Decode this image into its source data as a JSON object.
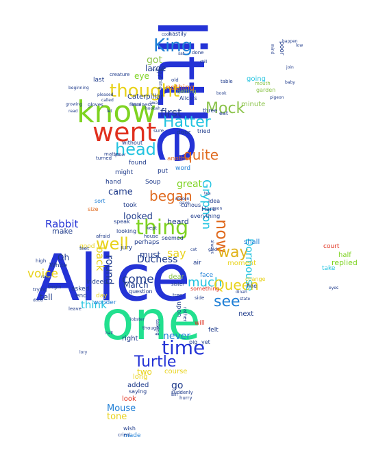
{
  "cloud": {
    "words": [
      {
        "text": "Alice",
        "color": "#2433d6"
      },
      {
        "text": "one",
        "color": "#22e08f"
      },
      {
        "text": "little",
        "color": "#2433d6"
      },
      {
        "text": "know",
        "color": "#7ed321"
      },
      {
        "text": "went",
        "color": "#e0301e"
      },
      {
        "text": "thought",
        "color": "#e8d21a"
      },
      {
        "text": "King",
        "color": "#1f7fd6"
      },
      {
        "text": "head",
        "color": "#22c3e0"
      },
      {
        "text": "Hatter",
        "color": "#22c3e0"
      },
      {
        "text": "Mock",
        "color": "#8bc34a"
      },
      {
        "text": "quite",
        "color": "#e06a1e"
      },
      {
        "text": "first",
        "color": "#1e3a8a"
      },
      {
        "text": "began",
        "color": "#e06a1e"
      },
      {
        "text": "thing",
        "color": "#7ed321"
      },
      {
        "text": "well",
        "color": "#e8d21a"
      },
      {
        "text": "now",
        "color": "#e06a1e"
      },
      {
        "text": "way",
        "color": "#e0b21a"
      },
      {
        "text": "Gryphon",
        "color": "#22c3e0"
      },
      {
        "text": "say",
        "color": "#e8d21a"
      },
      {
        "text": "much",
        "color": "#22c3e0"
      },
      {
        "text": "see",
        "color": "#1f7fd6"
      },
      {
        "text": "Queen",
        "color": "#e8d21a"
      },
      {
        "text": "time",
        "color": "#2433d6"
      },
      {
        "text": "Turtle",
        "color": "#2433d6"
      },
      {
        "text": "come",
        "color": "#1e3a8a"
      },
      {
        "text": "voice",
        "color": "#e8d21a"
      },
      {
        "text": "round",
        "color": "#1e3a8a"
      },
      {
        "text": "back",
        "color": "#e8d21a"
      },
      {
        "text": "Rabbit",
        "color": "#2433d6"
      },
      {
        "text": "Duchess",
        "color": "#1e3a8a"
      },
      {
        "text": "Dormouse",
        "color": "#22c3e0"
      },
      {
        "text": "think",
        "color": "#22c3e0"
      },
      {
        "text": "never",
        "color": "#1f7fd6"
      },
      {
        "text": "go",
        "color": "#1e3a8a"
      },
      {
        "text": "Mouse",
        "color": "#1f7fd6"
      },
      {
        "text": "tone",
        "color": "#e8d21a"
      },
      {
        "text": "looked",
        "color": "#1e3a8a"
      },
      {
        "text": "great",
        "color": "#7ed321"
      },
      {
        "text": "came",
        "color": "#1e3a8a"
      },
      {
        "text": "got",
        "color": "#8bc34a"
      },
      {
        "text": "large",
        "color": "#1e3a8a"
      },
      {
        "text": "March",
        "color": "#1e3a8a"
      },
      {
        "text": "two",
        "color": "#e8d21a"
      },
      {
        "text": "tell",
        "color": "#1e3a8a"
      },
      {
        "text": "Oh",
        "color": "#1e3a8a"
      },
      {
        "text": "must",
        "color": "#1e3a8a"
      },
      {
        "text": "eye",
        "color": "#7ed321"
      },
      {
        "text": "make",
        "color": "#1e3a8a"
      },
      {
        "text": "heard",
        "color": "#1e3a8a"
      },
      {
        "text": "Caterpillar",
        "color": "#1e3a8a"
      },
      {
        "text": "nothing",
        "color": "#e06a1e"
      },
      {
        "text": "replied",
        "color": "#7ed321"
      },
      {
        "text": "half",
        "color": "#7ed321"
      },
      {
        "text": "next",
        "color": "#1e3a8a"
      },
      {
        "text": "dear",
        "color": "#8bc34a"
      },
      {
        "text": "moment",
        "color": "#e8d21a"
      },
      {
        "text": "minute",
        "color": "#8bc34a"
      },
      {
        "text": "shall",
        "color": "#1f7fd6"
      },
      {
        "text": "going",
        "color": "#22c3e0"
      },
      {
        "text": "added",
        "color": "#1e3a8a"
      },
      {
        "text": "long",
        "color": "#e8d21a"
      },
      {
        "text": "course",
        "color": "#e8d21a"
      },
      {
        "text": "right",
        "color": "#1e3a8a"
      },
      {
        "text": "look",
        "color": "#e0301e"
      },
      {
        "text": "made",
        "color": "#1f7fd6"
      },
      {
        "text": "Soup",
        "color": "#1e3a8a"
      },
      {
        "text": "found",
        "color": "#1e3a8a"
      },
      {
        "text": "put",
        "color": "#1e3a8a"
      },
      {
        "text": "word",
        "color": "#1f7fd6"
      },
      {
        "text": "might",
        "color": "#1e3a8a"
      },
      {
        "text": "hand",
        "color": "#1e3a8a"
      },
      {
        "text": "Hare",
        "color": "#1e3a8a"
      },
      {
        "text": "took",
        "color": "#1e3a8a"
      },
      {
        "text": "good",
        "color": "#e8d21a"
      },
      {
        "text": "White",
        "color": "#1e3a8a"
      },
      {
        "text": "jury",
        "color": "#1e3a8a"
      },
      {
        "text": "perhaps",
        "color": "#1e3a8a"
      },
      {
        "text": "face",
        "color": "#1f7fd6"
      },
      {
        "text": "last",
        "color": "#1e3a8a"
      },
      {
        "text": "take",
        "color": "#22c3e0"
      },
      {
        "text": "court",
        "color": "#e0301e"
      },
      {
        "text": "felt",
        "color": "#1e3a8a"
      },
      {
        "text": "will",
        "color": "#e0301e"
      },
      {
        "text": "upon",
        "color": "#1e3a8a"
      },
      {
        "text": "another",
        "color": "#e06a1e"
      },
      {
        "text": "without",
        "color": "#1e3a8a"
      },
      {
        "text": "door",
        "color": "#1e3a8a"
      },
      {
        "text": "three",
        "color": "#1e3a8a"
      },
      {
        "text": "day",
        "color": "#e8d21a"
      },
      {
        "text": "wonder",
        "color": "#1f7fd6"
      },
      {
        "text": "end",
        "color": "#1e3a8a"
      },
      {
        "text": "asked",
        "color": "#1e3a8a"
      },
      {
        "text": "indeed",
        "color": "#1e3a8a"
      },
      {
        "text": "tried",
        "color": "#1e3a8a"
      },
      {
        "text": "air",
        "color": "#1e3a8a"
      },
      {
        "text": "size",
        "color": "#e06a1e"
      },
      {
        "text": "seemed",
        "color": "#1e3a8a"
      },
      {
        "text": "speak",
        "color": "#1e3a8a"
      },
      {
        "text": "looking",
        "color": "#1e3a8a"
      },
      {
        "text": "Alice's",
        "color": "#1e3a8a"
      },
      {
        "text": "sort",
        "color": "#1f7fd6"
      },
      {
        "text": "poor",
        "color": "#1e3a8a"
      },
      {
        "text": "garden",
        "color": "#8bc34a"
      },
      {
        "text": "mouth",
        "color": "#8bc34a"
      },
      {
        "text": "eat",
        "color": "#1e3a8a"
      },
      {
        "text": "idea",
        "color": "#1e3a8a"
      },
      {
        "text": "change",
        "color": "#e8d21a"
      },
      {
        "text": "fine",
        "color": "#1e3a8a"
      },
      {
        "text": "hastily",
        "color": "#1e3a8a"
      },
      {
        "text": "getting",
        "color": "#8bc34a"
      },
      {
        "text": "yet",
        "color": "#1e3a8a"
      },
      {
        "text": "pig",
        "color": "#1e3a8a"
      },
      {
        "text": "something",
        "color": "#e0301e"
      },
      {
        "text": "question",
        "color": "#1e3a8a"
      },
      {
        "text": "saying",
        "color": "#1e3a8a"
      },
      {
        "text": "wish",
        "color": "#1e3a8a"
      },
      {
        "text": "everything",
        "color": "#1e3a8a"
      },
      {
        "text": "curious",
        "color": "#1e3a8a"
      },
      {
        "text": "creature",
        "color": "#1e3a8a"
      },
      {
        "text": "business",
        "color": "#1e3a8a"
      },
      {
        "text": "gloves",
        "color": "#1e3a8a"
      },
      {
        "text": "high",
        "color": "#1e3a8a"
      },
      {
        "text": "begin",
        "color": "#1e3a8a"
      },
      {
        "text": "trying",
        "color": "#1e3a8a"
      },
      {
        "text": "talking",
        "color": "#1e3a8a"
      },
      {
        "text": "though",
        "color": "#1e3a8a"
      },
      {
        "text": "rather",
        "color": "#1e3a8a"
      },
      {
        "text": "cried",
        "color": "#1e3a8a"
      },
      {
        "text": "leave",
        "color": "#1e3a8a"
      },
      {
        "text": "turned",
        "color": "#1e3a8a"
      },
      {
        "text": "kept",
        "color": "#1e3a8a"
      },
      {
        "text": "anything",
        "color": "#1e3a8a"
      },
      {
        "text": "table",
        "color": "#1e3a8a"
      },
      {
        "text": "done",
        "color": "#1e3a8a"
      },
      {
        "text": "matter",
        "color": "#1e3a8a"
      },
      {
        "text": "hurry",
        "color": "#1e3a8a"
      },
      {
        "text": "suddenly",
        "color": "#1e3a8a"
      },
      {
        "text": "afraid",
        "color": "#1e3a8a"
      },
      {
        "text": "sister",
        "color": "#1e3a8a"
      },
      {
        "text": "tree",
        "color": "#1e3a8a"
      },
      {
        "text": "feet",
        "color": "#1e3a8a"
      },
      {
        "text": "house",
        "color": "#1e3a8a"
      },
      {
        "text": "side",
        "color": "#1e3a8a"
      },
      {
        "text": "sure",
        "color": "#1e3a8a"
      },
      {
        "text": "old",
        "color": "#1e3a8a"
      },
      {
        "text": "book",
        "color": "#1e3a8a"
      },
      {
        "text": "reason",
        "color": "#1e3a8a"
      },
      {
        "text": "Bill",
        "color": "#1e3a8a"
      },
      {
        "text": "state",
        "color": "#1e3a8a"
      },
      {
        "text": "mind",
        "color": "#1e3a8a"
      },
      {
        "text": "always",
        "color": "#1e3a8a"
      },
      {
        "text": "called",
        "color": "#1e3a8a"
      },
      {
        "text": "away",
        "color": "#1e3a8a"
      },
      {
        "text": "let",
        "color": "#1e3a8a"
      },
      {
        "text": "sat",
        "color": "#1e3a8a"
      },
      {
        "text": "still",
        "color": "#1e3a8a"
      },
      {
        "text": "cat",
        "color": "#1e3a8a"
      },
      {
        "text": "eyes",
        "color": "#1e3a8a"
      },
      {
        "text": "happen",
        "color": "#1e3a8a"
      },
      {
        "text": "join",
        "color": "#1e3a8a"
      },
      {
        "text": "pleased",
        "color": "#1e3a8a"
      },
      {
        "text": "voices",
        "color": "#1e3a8a"
      },
      {
        "text": "beginning",
        "color": "#1e3a8a"
      },
      {
        "text": "growing",
        "color": "#1e3a8a"
      },
      {
        "text": "read",
        "color": "#1e3a8a"
      },
      {
        "text": "dance",
        "color": "#1e3a8a"
      },
      {
        "text": "dinah",
        "color": "#1e3a8a"
      },
      {
        "text": "cook",
        "color": "#1e3a8a"
      },
      {
        "text": "glad",
        "color": "#1e3a8a"
      },
      {
        "text": "pigeon",
        "color": "#1e3a8a"
      },
      {
        "text": "hookah",
        "color": "#1e3a8a"
      },
      {
        "text": "queer",
        "color": "#1e3a8a"
      },
      {
        "text": "gave",
        "color": "#1e3a8a"
      },
      {
        "text": "dodo",
        "color": "#1e3a8a"
      },
      {
        "text": "lory",
        "color": "#1e3a8a"
      },
      {
        "text": "hall",
        "color": "#1e3a8a"
      },
      {
        "text": "tea",
        "color": "#1e3a8a"
      },
      {
        "text": "soon",
        "color": "#1e3a8a"
      },
      {
        "text": "ran",
        "color": "#1e3a8a"
      },
      {
        "text": "low",
        "color": "#1e3a8a"
      },
      {
        "text": "baby",
        "color": "#1e3a8a"
      },
      {
        "text": "lobster",
        "color": "#1e3a8a"
      },
      {
        "text": "gryphon",
        "color": "#1e3a8a"
      },
      {
        "text": "chin",
        "color": "#1e3a8a"
      },
      {
        "text": "shook",
        "color": "#1e3a8a"
      },
      {
        "text": "cried",
        "color": "#1e3a8a"
      }
    ]
  }
}
